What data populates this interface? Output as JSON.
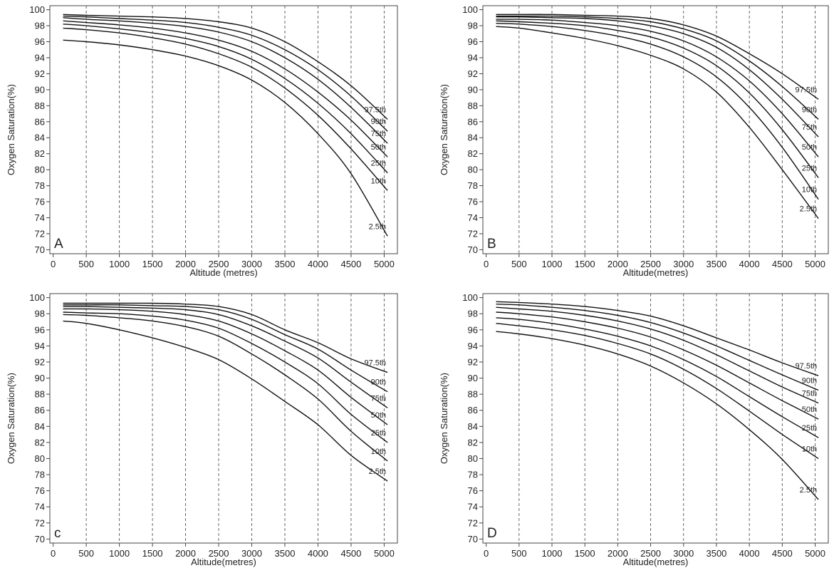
{
  "chart_data": [
    {
      "type": "line",
      "panel_letter": "A",
      "xlabel": "Altitude (metres)",
      "ylabel": "Oxygen Saturation(%)",
      "xlim": [
        -50,
        5200
      ],
      "ylim": [
        69.5,
        100.5
      ],
      "xticks": [
        "0",
        "500",
        "1000",
        "1500",
        "2000",
        "2500",
        "3000",
        "3500",
        "4000",
        "4500",
        "5000"
      ],
      "yticks": [
        "70",
        "72",
        "74",
        "76",
        "78",
        "80",
        "82",
        "84",
        "86",
        "88",
        "90",
        "92",
        "94",
        "96",
        "98",
        "100"
      ],
      "grid": "vertical dashed",
      "x": [
        150,
        500,
        1000,
        1500,
        2000,
        2500,
        3000,
        3500,
        4000,
        4500,
        5050
      ],
      "series": [
        {
          "name": "97.5th",
          "values": [
            99.4,
            99.3,
            99.2,
            99.1,
            98.9,
            98.5,
            97.7,
            96.0,
            93.5,
            90.5,
            86.3
          ]
        },
        {
          "name": "90th",
          "values": [
            99.2,
            99.1,
            98.9,
            98.7,
            98.4,
            97.8,
            96.8,
            95.0,
            92.5,
            89.2,
            84.8
          ]
        },
        {
          "name": "75th",
          "values": [
            99.0,
            98.8,
            98.6,
            98.3,
            97.9,
            97.2,
            96.0,
            94.0,
            91.3,
            87.8,
            83.3
          ]
        },
        {
          "name": "50th",
          "values": [
            98.6,
            98.4,
            98.1,
            97.7,
            97.1,
            96.2,
            94.8,
            92.6,
            89.7,
            86.2,
            81.6
          ]
        },
        {
          "name": "25th",
          "values": [
            98.2,
            98.0,
            97.6,
            97.1,
            96.4,
            95.4,
            93.8,
            91.4,
            88.3,
            84.5,
            79.6
          ]
        },
        {
          "name": "10th",
          "values": [
            97.7,
            97.5,
            97.1,
            96.5,
            95.7,
            94.5,
            92.8,
            90.2,
            86.8,
            82.6,
            77.4
          ]
        },
        {
          "name": "2.5th",
          "values": [
            96.2,
            96.0,
            95.6,
            95.0,
            94.2,
            93.0,
            91.2,
            88.4,
            84.5,
            79.5,
            71.7
          ]
        }
      ]
    },
    {
      "type": "line",
      "panel_letter": "B",
      "xlabel": "Altitude(metres)",
      "ylabel": "Oxygen Saturation(%)",
      "xlim": [
        -50,
        5200
      ],
      "ylim": [
        69.5,
        100.5
      ],
      "xticks": [
        "0",
        "500",
        "1000",
        "1500",
        "2000",
        "2500",
        "3000",
        "3500",
        "4000",
        "4500",
        "5000"
      ],
      "yticks": [
        "70",
        "72",
        "74",
        "76",
        "78",
        "80",
        "82",
        "84",
        "86",
        "88",
        "90",
        "92",
        "94",
        "96",
        "98",
        "100"
      ],
      "grid": "vertical dashed",
      "x": [
        150,
        500,
        1000,
        1500,
        2000,
        2500,
        3000,
        3500,
        4000,
        4500,
        5050
      ],
      "series": [
        {
          "name": "97.5th",
          "values": [
            99.4,
            99.4,
            99.4,
            99.3,
            99.2,
            98.9,
            98.1,
            96.7,
            94.5,
            92.0,
            88.8
          ]
        },
        {
          "name": "90th",
          "values": [
            99.2,
            99.2,
            99.2,
            99.1,
            98.9,
            98.5,
            97.6,
            96.1,
            93.6,
            90.4,
            86.3
          ]
        },
        {
          "name": "75th",
          "values": [
            99.1,
            99.1,
            99.0,
            98.9,
            98.6,
            98.0,
            97.0,
            95.3,
            92.5,
            88.8,
            84.1
          ]
        },
        {
          "name": "50th",
          "values": [
            98.8,
            98.8,
            98.7,
            98.4,
            98.0,
            97.3,
            96.1,
            94.1,
            91.1,
            87.0,
            81.6
          ]
        },
        {
          "name": "25th",
          "values": [
            98.6,
            98.5,
            98.3,
            98.0,
            97.4,
            96.6,
            95.2,
            93.0,
            89.6,
            85.0,
            79.0
          ]
        },
        {
          "name": "10th",
          "values": [
            98.3,
            98.2,
            97.9,
            97.4,
            96.7,
            95.7,
            94.1,
            91.6,
            87.8,
            82.8,
            76.3
          ]
        },
        {
          "name": "2.5th",
          "values": [
            97.9,
            97.7,
            97.1,
            96.4,
            95.5,
            94.3,
            92.6,
            89.7,
            85.3,
            80.0,
            73.9
          ]
        }
      ]
    },
    {
      "type": "line",
      "panel_letter": "c",
      "xlabel": "Altitude(metres)",
      "ylabel": "Oxygen Saturation(%)",
      "xlim": [
        -50,
        5200
      ],
      "ylim": [
        69.5,
        100.5
      ],
      "xticks": [
        "0",
        "500",
        "1000",
        "1500",
        "2000",
        "2500",
        "3000",
        "3500",
        "4000",
        "4500",
        "5000"
      ],
      "yticks": [
        "70",
        "72",
        "74",
        "76",
        "78",
        "80",
        "82",
        "84",
        "86",
        "88",
        "90",
        "92",
        "94",
        "96",
        "98",
        "100"
      ],
      "grid": "vertical dashed",
      "x": [
        150,
        500,
        1000,
        1500,
        2000,
        2500,
        3000,
        3500,
        4000,
        4500,
        5050
      ],
      "series": [
        {
          "name": "97.5th",
          "values": [
            99.3,
            99.3,
            99.3,
            99.3,
            99.2,
            98.9,
            97.9,
            96.0,
            94.4,
            92.4,
            90.7
          ]
        },
        {
          "name": "90th",
          "values": [
            99.1,
            99.1,
            99.1,
            99.0,
            98.9,
            98.5,
            97.3,
            95.4,
            93.6,
            91.0,
            88.3
          ]
        },
        {
          "name": "75th",
          "values": [
            98.9,
            98.9,
            98.8,
            98.7,
            98.5,
            97.9,
            96.5,
            94.6,
            92.5,
            89.5,
            86.3
          ]
        },
        {
          "name": "50th",
          "values": [
            98.6,
            98.6,
            98.5,
            98.3,
            97.9,
            97.1,
            95.5,
            93.4,
            91.0,
            87.6,
            84.2
          ]
        },
        {
          "name": "25th",
          "values": [
            98.2,
            98.1,
            98.0,
            97.7,
            97.2,
            96.2,
            94.3,
            92.0,
            89.3,
            85.5,
            82.0
          ]
        },
        {
          "name": "10th",
          "values": [
            97.9,
            97.8,
            97.5,
            97.1,
            96.4,
            95.2,
            93.0,
            90.4,
            87.4,
            83.4,
            79.7
          ]
        },
        {
          "name": "2.5th",
          "values": [
            97.1,
            96.8,
            96.0,
            95.0,
            93.8,
            92.3,
            89.9,
            87.1,
            84.2,
            80.4,
            77.2
          ]
        }
      ]
    },
    {
      "type": "line",
      "panel_letter": "D",
      "xlabel": "Altitude(metres)",
      "ylabel": "Oxygen Saturation(%)",
      "xlim": [
        -50,
        5200
      ],
      "ylim": [
        69.5,
        100.5
      ],
      "xticks": [
        "0",
        "500",
        "1000",
        "1500",
        "2000",
        "2500",
        "3000",
        "3500",
        "4000",
        "4500",
        "5000"
      ],
      "yticks": [
        "70",
        "72",
        "74",
        "76",
        "78",
        "80",
        "82",
        "84",
        "86",
        "88",
        "90",
        "92",
        "94",
        "96",
        "98",
        "100"
      ],
      "grid": "vertical dashed",
      "x": [
        150,
        500,
        1000,
        1500,
        2000,
        2500,
        3000,
        3500,
        4000,
        4500,
        5050
      ],
      "series": [
        {
          "name": "97.5th",
          "values": [
            99.5,
            99.4,
            99.2,
            98.9,
            98.4,
            97.7,
            96.5,
            95.0,
            93.5,
            91.9,
            90.3
          ]
        },
        {
          "name": "90th",
          "values": [
            99.2,
            99.1,
            98.8,
            98.4,
            97.8,
            96.9,
            95.6,
            94.0,
            92.2,
            90.4,
            88.5
          ]
        },
        {
          "name": "75th",
          "values": [
            98.8,
            98.6,
            98.3,
            97.8,
            97.1,
            96.1,
            94.7,
            92.9,
            90.9,
            88.9,
            86.9
          ]
        },
        {
          "name": "50th",
          "values": [
            98.2,
            98.0,
            97.6,
            97.0,
            96.2,
            95.1,
            93.5,
            91.6,
            89.4,
            87.2,
            84.9
          ]
        },
        {
          "name": "25th",
          "values": [
            97.5,
            97.3,
            96.8,
            96.1,
            95.2,
            94.0,
            92.3,
            90.2,
            87.7,
            85.2,
            82.6
          ]
        },
        {
          "name": "10th",
          "values": [
            96.8,
            96.5,
            96.0,
            95.3,
            94.3,
            93.0,
            91.1,
            88.7,
            85.9,
            83.0,
            80.0
          ]
        },
        {
          "name": "2.5th",
          "values": [
            95.8,
            95.5,
            94.9,
            94.1,
            93.0,
            91.5,
            89.4,
            86.8,
            83.6,
            79.9,
            74.9
          ]
        }
      ]
    }
  ]
}
